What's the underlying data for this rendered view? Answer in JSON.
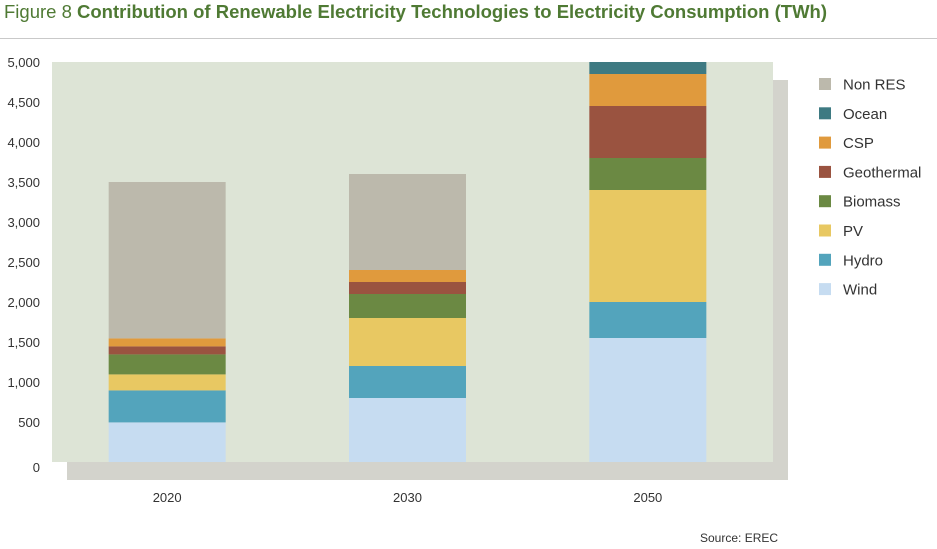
{
  "title_prefix": "Figure 8",
  "title_text": "Contribution of Renewable Electricity Technologies to Electricity Consumption (TWh)",
  "source": "Source: EREC",
  "colors": {
    "Wind": "#c6dcf1",
    "Hydro": "#53a4bc",
    "PV": "#e8c862",
    "Biomass": "#6b8943",
    "Geothermal": "#9a5340",
    "CSP": "#e09a3d",
    "Ocean": "#3e7a82",
    "Non RES": "#bcb9ac"
  },
  "chart_data": {
    "type": "bar",
    "stacked": true,
    "categories": [
      "2020",
      "2030",
      "2050"
    ],
    "ylim": [
      0,
      5000
    ],
    "yticks": [
      "0",
      "500",
      "1,000",
      "1,500",
      "2,000",
      "2,500",
      "3,000",
      "3,500",
      "4,000",
      "4,500",
      "5,000"
    ],
    "legend_position": "right",
    "series": [
      {
        "name": "Wind",
        "values": [
          495,
          800,
          1550
        ]
      },
      {
        "name": "Hydro",
        "values": [
          400,
          400,
          450
        ]
      },
      {
        "name": "PV",
        "values": [
          200,
          600,
          1400
        ]
      },
      {
        "name": "Biomass",
        "values": [
          250,
          300,
          400
        ]
      },
      {
        "name": "Geothermal",
        "values": [
          100,
          150,
          650
        ]
      },
      {
        "name": "CSP",
        "values": [
          100,
          150,
          400
        ]
      },
      {
        "name": "Ocean",
        "values": [
          0,
          0,
          150
        ]
      },
      {
        "name": "Non RES",
        "values": [
          1955,
          1200,
          0
        ]
      }
    ]
  }
}
